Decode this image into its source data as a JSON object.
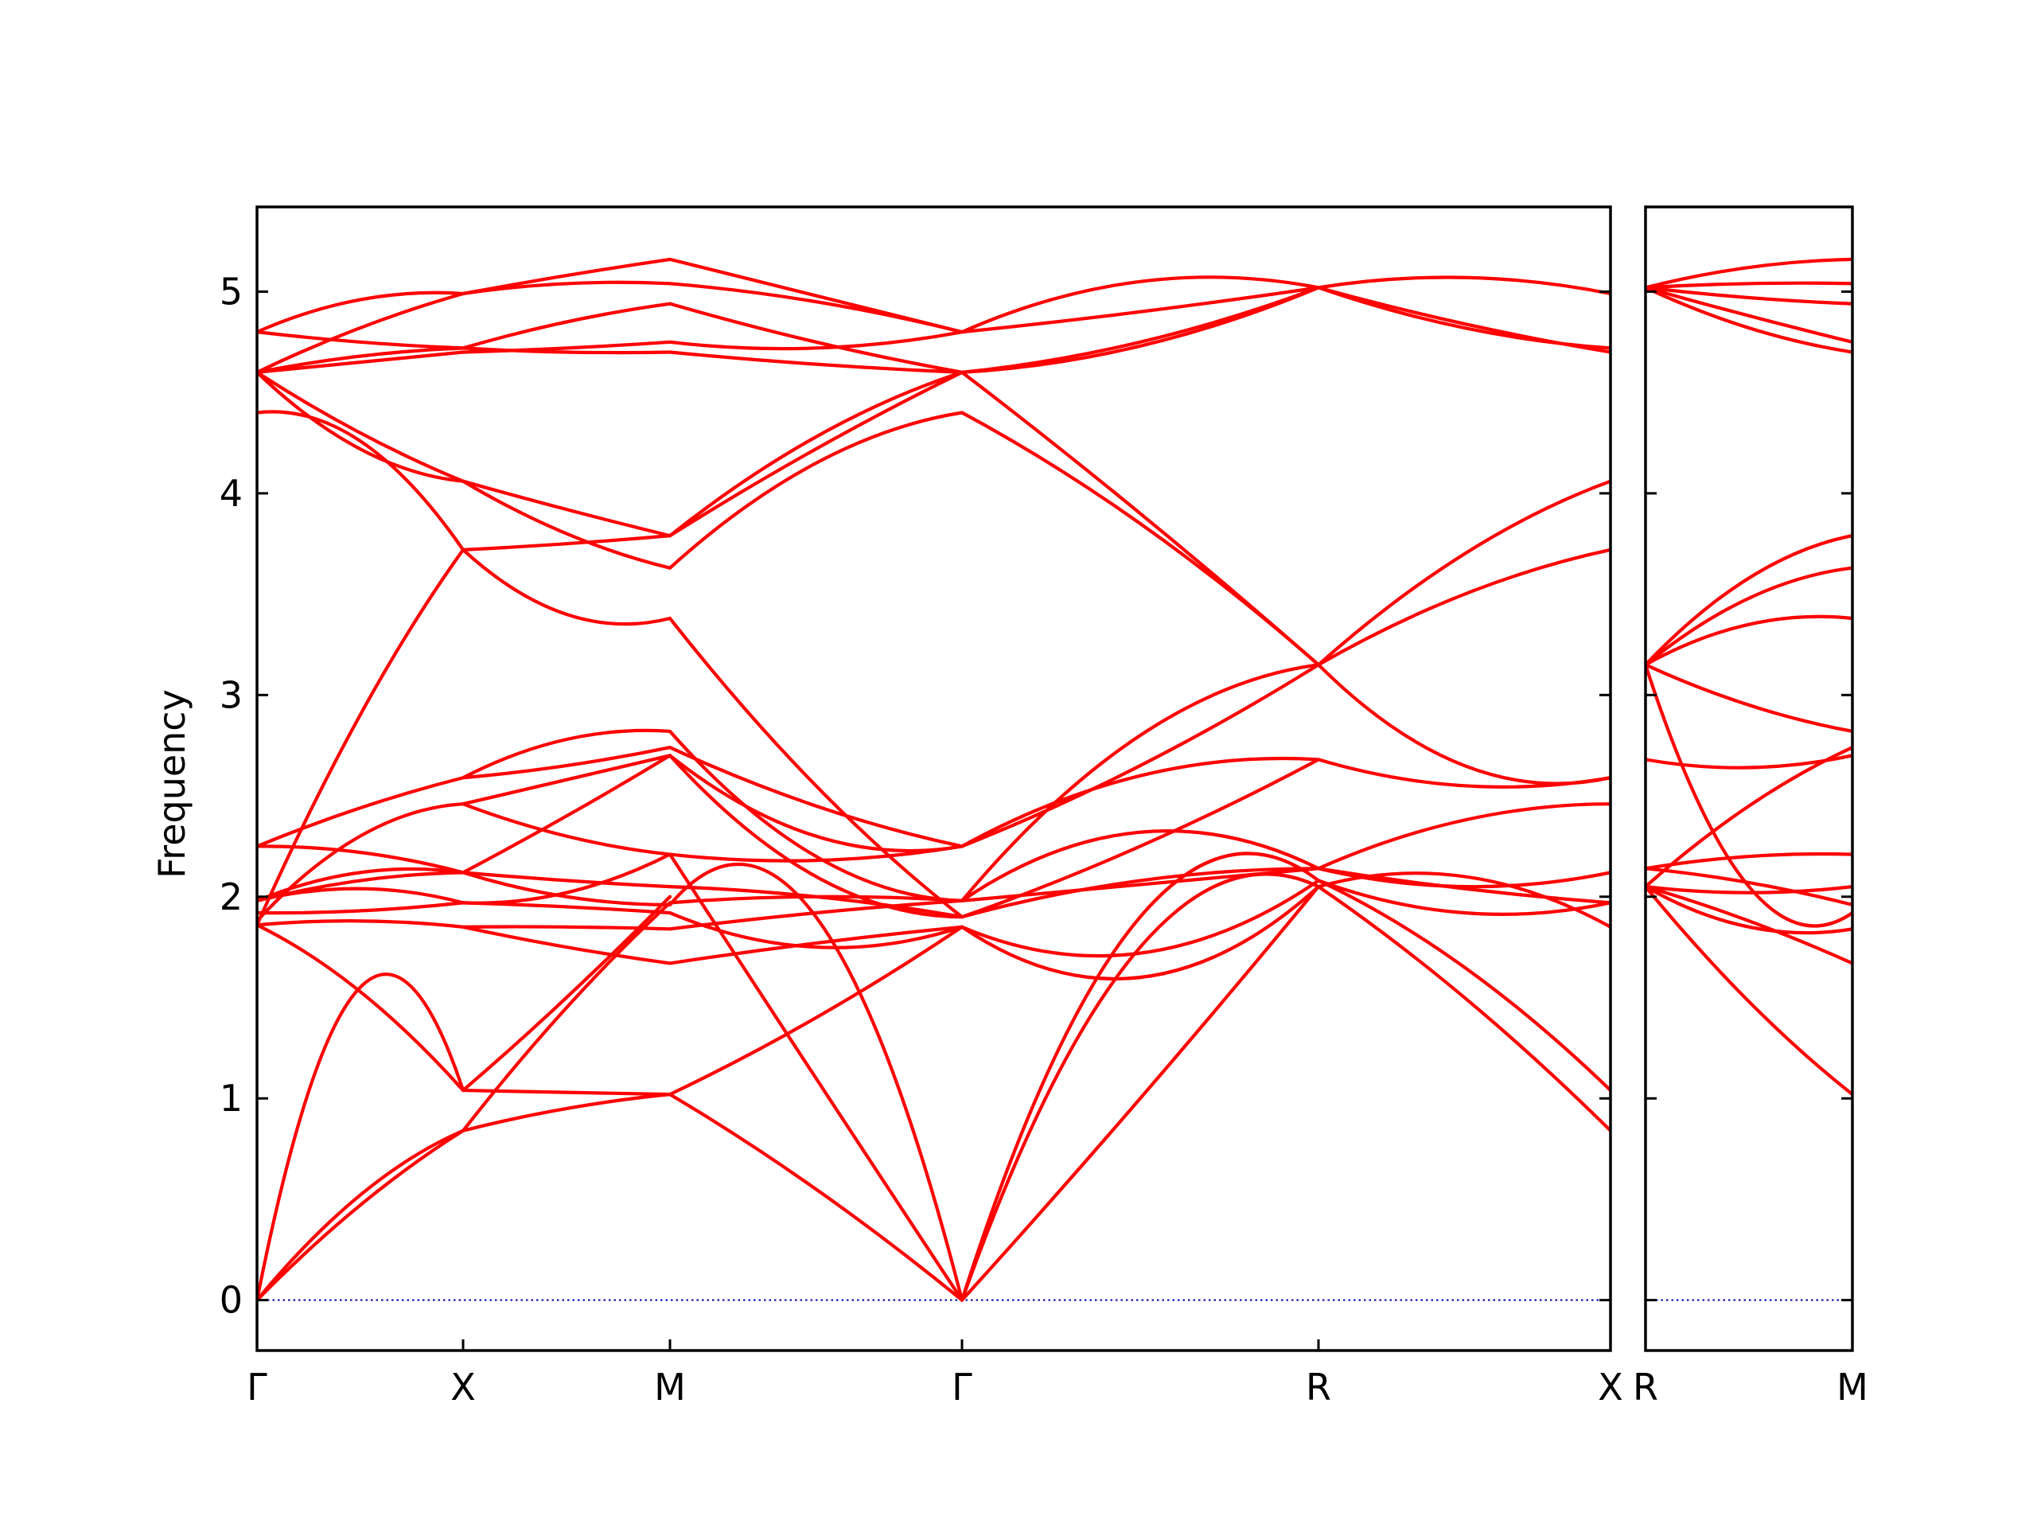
{
  "chart_data": {
    "type": "line",
    "title": "",
    "ylabel": "Frequency",
    "xlabel": "",
    "ylim": [
      -0.25,
      5.42
    ],
    "yticks": [
      0,
      1,
      2,
      3,
      4,
      5
    ],
    "yticklabels": [
      "0",
      "1",
      "2",
      "3",
      "4",
      "5"
    ],
    "grid": false,
    "line_color": "#ff0000",
    "zero_line_color": "#0000aa",
    "panels": [
      {
        "path": [
          "Γ",
          "X",
          "M",
          "Γ",
          "R",
          "X"
        ],
        "segments": [
          {
            "from": "Γ",
            "to": "X",
            "bands": [
              [
                0.0,
                0.47,
                0.84
              ],
              [
                0.0,
                0.52,
                0.84
              ],
              [
                0.0,
                1.55,
                1.04
              ],
              [
                1.86,
                1.53,
                1.04
              ],
              [
                1.86,
                1.88,
                1.85
              ],
              [
                1.88,
                2.3,
                2.46
              ],
              [
                1.92,
                1.93,
                1.97
              ],
              [
                1.98,
                2.04,
                1.97
              ],
              [
                1.98,
                2.08,
                2.12
              ],
              [
                1.98,
                2.12,
                2.12
              ],
              [
                2.25,
                2.22,
                2.12
              ],
              [
                2.25,
                2.44,
                2.59
              ],
              [
                1.86,
                2.9,
                3.72
              ],
              [
                4.4,
                4.26,
                3.72
              ],
              [
                4.6,
                4.22,
                4.06
              ],
              [
                4.6,
                4.3,
                4.06
              ],
              [
                4.6,
                4.65,
                4.7
              ],
              [
                4.6,
                4.68,
                4.72
              ],
              [
                4.8,
                4.75,
                4.72
              ],
              [
                4.6,
                4.82,
                4.99
              ],
              [
                4.8,
                4.96,
                4.99
              ]
            ]
          },
          {
            "from": "X",
            "to": "M",
            "bands": [
              [
                0.84,
                0.95,
                1.02
              ],
              [
                0.84,
                1.45,
                1.97
              ],
              [
                1.04,
                1.5,
                2.0
              ],
              [
                1.04,
                1.03,
                1.02
              ],
              [
                1.85,
                1.75,
                1.67
              ],
              [
                1.97,
                1.95,
                1.92
              ],
              [
                1.85,
                1.85,
                1.84
              ],
              [
                2.46,
                2.58,
                2.7
              ],
              [
                2.12,
                2.0,
                1.96
              ],
              [
                2.12,
                2.08,
                2.05
              ],
              [
                2.12,
                2.4,
                2.7
              ],
              [
                1.97,
                2.02,
                2.21
              ],
              [
                2.46,
                2.3,
                2.21
              ],
              [
                2.59,
                2.65,
                2.74
              ],
              [
                2.59,
                2.78,
                2.82
              ],
              [
                3.72,
                3.75,
                3.79
              ],
              [
                3.72,
                3.4,
                3.38
              ],
              [
                4.06,
                3.8,
                3.63
              ],
              [
                4.06,
                3.92,
                3.79
              ],
              [
                4.7,
                4.72,
                4.75
              ],
              [
                4.72,
                4.7,
                4.7
              ],
              [
                4.99,
                5.04,
                5.04
              ],
              [
                4.72,
                4.85,
                4.94
              ],
              [
                4.99,
                5.08,
                5.16
              ]
            ]
          },
          {
            "from": "M",
            "to": "Γ",
            "bands": [
              [
                1.02,
                1.4,
                1.85
              ],
              [
                1.02,
                0.55,
                0.0
              ],
              [
                2.21,
                1.1,
                0.0
              ],
              [
                1.96,
                1.9,
                0.0
              ],
              [
                1.67,
                1.77,
                1.85
              ],
              [
                1.84,
                1.92,
                1.98
              ],
              [
                1.92,
                1.75,
                1.85
              ],
              [
                1.97,
                2.0,
                1.98
              ],
              [
                2.05,
                2.0,
                1.9
              ],
              [
                2.21,
                2.18,
                2.25
              ],
              [
                2.7,
                2.1,
                1.9
              ],
              [
                2.7,
                2.3,
                2.25
              ],
              [
                2.74,
                2.45,
                2.25
              ],
              [
                2.82,
                2.2,
                1.98
              ],
              [
                3.38,
                2.55,
                1.9
              ],
              [
                3.63,
                4.15,
                4.4
              ],
              [
                3.79,
                4.22,
                4.6
              ],
              [
                3.79,
                4.28,
                4.6
              ],
              [
                4.7,
                4.64,
                4.6
              ],
              [
                4.75,
                4.72,
                4.8
              ],
              [
                4.94,
                4.75,
                4.6
              ],
              [
                5.04,
                4.95,
                4.8
              ],
              [
                5.16,
                4.98,
                4.8
              ]
            ]
          },
          {
            "from": "Γ",
            "to": "R",
            "bands": [
              [
                0.0,
                1.0,
                2.05
              ],
              [
                0.0,
                1.75,
                2.05
              ],
              [
                0.0,
                1.9,
                2.08
              ],
              [
                1.85,
                1.6,
                2.05
              ],
              [
                1.85,
                1.72,
                2.08
              ],
              [
                1.9,
                2.08,
                2.14
              ],
              [
                1.98,
                2.06,
                2.14
              ],
              [
                1.98,
                2.32,
                2.14
              ],
              [
                1.9,
                2.25,
                2.68
              ],
              [
                2.25,
                2.6,
                2.68
              ],
              [
                2.25,
                2.65,
                3.15
              ],
              [
                1.98,
                2.8,
                3.15
              ],
              [
                4.4,
                3.85,
                3.15
              ],
              [
                4.6,
                3.9,
                3.15
              ],
              [
                4.6,
                4.75,
                5.02
              ],
              [
                4.6,
                4.73,
                5.02
              ],
              [
                4.8,
                4.9,
                5.02
              ],
              [
                4.8,
                5.05,
                5.02
              ]
            ]
          },
          {
            "from": "R",
            "to": "X",
            "bands": [
              [
                2.05,
                1.5,
                0.84
              ],
              [
                2.08,
                1.65,
                1.04
              ],
              [
                2.05,
                2.1,
                1.85
              ],
              [
                2.08,
                1.92,
                1.97
              ],
              [
                2.14,
                2.38,
                2.46
              ],
              [
                2.14,
                2.05,
                2.12
              ],
              [
                2.14,
                2.04,
                1.97
              ],
              [
                2.68,
                2.55,
                2.59
              ],
              [
                3.15,
                2.65,
                2.59
              ],
              [
                3.15,
                3.5,
                3.72
              ],
              [
                3.15,
                3.7,
                4.06
              ],
              [
                5.02,
                4.84,
                4.7
              ],
              [
                5.02,
                4.82,
                4.72
              ],
              [
                5.02,
                5.07,
                4.99
              ]
            ]
          }
        ]
      },
      {
        "path": [
          "R",
          "M"
        ],
        "segments": [
          {
            "from": "R",
            "to": "M",
            "bands": [
              [
                2.05,
                1.48,
                1.02
              ],
              [
                2.05,
                1.88,
                1.67
              ],
              [
                2.05,
                1.85,
                1.84
              ],
              [
                2.14,
                2.07,
                1.96
              ],
              [
                2.05,
                2.02,
                2.05
              ],
              [
                2.14,
                2.2,
                2.21
              ],
              [
                2.68,
                2.64,
                2.7
              ],
              [
                2.05,
                2.45,
                2.74
              ],
              [
                3.15,
                2.05,
                1.92
              ],
              [
                3.15,
                2.95,
                2.82
              ],
              [
                3.15,
                3.35,
                3.38
              ],
              [
                3.15,
                3.48,
                3.63
              ],
              [
                3.15,
                3.58,
                3.79
              ],
              [
                5.02,
                4.82,
                4.7
              ],
              [
                5.02,
                4.88,
                4.75
              ],
              [
                5.02,
                4.97,
                4.94
              ],
              [
                5.02,
                5.04,
                5.04
              ],
              [
                5.02,
                5.12,
                5.16
              ]
            ]
          }
        ]
      }
    ]
  }
}
